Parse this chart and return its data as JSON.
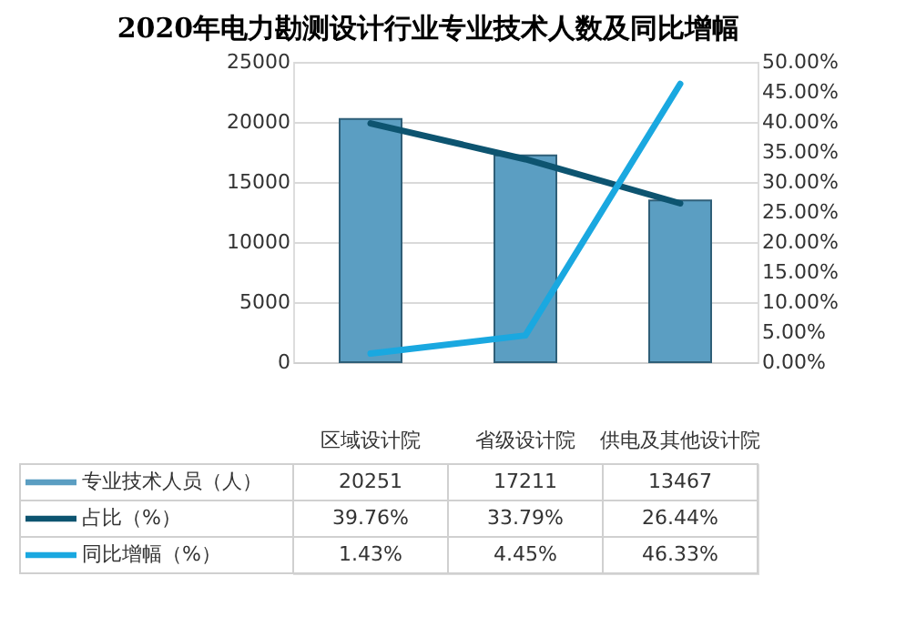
{
  "chart_data": {
    "type": "bar",
    "title": "2020年电力勘测设计行业专业技术人数及同比增幅",
    "categories": [
      "区域设计院",
      "省级设计院",
      "供电及其他设计院"
    ],
    "series": [
      {
        "name": "专业技术人员（人）",
        "color": "#5b9ec2",
        "values": [
          20251,
          17211,
          13467
        ],
        "value_labels": [
          "20251",
          "17211",
          "13467"
        ]
      },
      {
        "name": "占比（%）",
        "type": "line",
        "axis": "y2",
        "color": "#0d5470",
        "values": [
          39.76,
          33.79,
          26.44
        ],
        "value_labels": [
          "39.76%",
          "33.79%",
          "26.44%"
        ]
      },
      {
        "name": "同比增幅（%）",
        "type": "line",
        "axis": "y2",
        "color": "#1aa8e0",
        "values": [
          1.43,
          4.45,
          46.33
        ],
        "value_labels": [
          "1.43%",
          "4.45%",
          "46.33%"
        ]
      }
    ],
    "ylim": [
      0,
      25000
    ],
    "yticks": [
      0,
      5000,
      10000,
      15000,
      20000,
      25000
    ],
    "y2lim": [
      0,
      50
    ],
    "y2ticks": [
      {
        "value": 0,
        "label": "0.00%"
      },
      {
        "value": 5,
        "label": "5.00%"
      },
      {
        "value": 10,
        "label": "10.00%"
      },
      {
        "value": 15,
        "label": "15.00%"
      },
      {
        "value": 20,
        "label": "20.00%"
      },
      {
        "value": 25,
        "label": "25.00%"
      },
      {
        "value": 30,
        "label": "30.00%"
      },
      {
        "value": 35,
        "label": "35.00%"
      },
      {
        "value": 40,
        "label": "40.00%"
      },
      {
        "value": 45,
        "label": "45.00%"
      },
      {
        "value": 50,
        "label": "50.00%"
      }
    ],
    "grid": "y",
    "legend": "bottom",
    "line_style": "solid"
  }
}
